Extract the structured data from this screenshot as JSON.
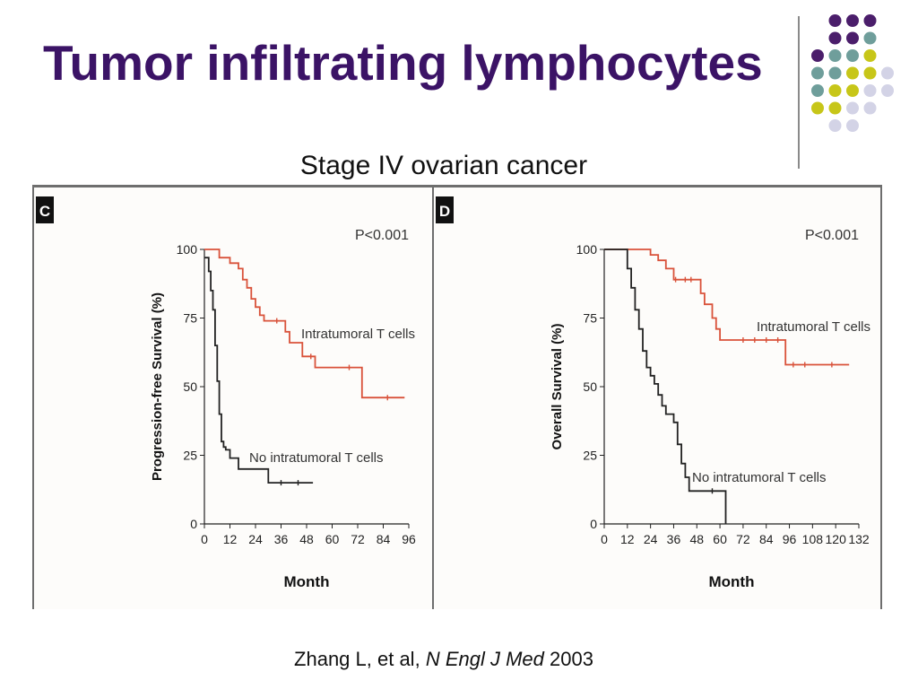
{
  "title": "Tumor infiltrating lymphocytes",
  "subtitle": "Stage IV ovarian cancer",
  "citation": {
    "authors": "Zhang L, et al,",
    "journal": "N Engl J Med",
    "year": "2003"
  },
  "colors": {
    "title": "#3b1366",
    "intratumoral": "#d9523a",
    "no_intratumoral": "#222222",
    "dot_purple": "#4b1e6b",
    "dot_teal": "#6f9e9b",
    "dot_lime": "#c7c619",
    "dot_lavender": "#d3d3e6"
  },
  "decorative_dot_colors": [
    [
      "purple",
      "purple",
      "purple"
    ],
    [
      "purple",
      "purple",
      "teal"
    ],
    [
      "purple",
      "teal",
      "teal",
      "lime"
    ],
    [
      "teal",
      "teal",
      "lime",
      "lime",
      "lavender"
    ],
    [
      "teal",
      "lime",
      "lime",
      "lavender",
      "lavender"
    ],
    [
      "lime",
      "lime",
      "lavender",
      "lavender"
    ],
    [
      "lavender",
      "lavender"
    ]
  ],
  "chart_data": [
    {
      "type": "line",
      "panel": "C",
      "pvalue": "P<0.001",
      "xlabel": "Month",
      "ylabel": "Progression-free Survival (%)",
      "xlim": [
        0,
        96
      ],
      "ylim": [
        0,
        100
      ],
      "xticks": [
        0,
        12,
        24,
        36,
        48,
        60,
        72,
        84,
        96
      ],
      "yticks": [
        0,
        25,
        50,
        75,
        100
      ],
      "series": [
        {
          "name": "Intratumoral T cells",
          "color": "intratumoral",
          "x": [
            0,
            7,
            7,
            12,
            12,
            16,
            16,
            18,
            18,
            20,
            20,
            22,
            22,
            24,
            24,
            26,
            26,
            28,
            28,
            38,
            38,
            40,
            40,
            46,
            46,
            52,
            52,
            74,
            74,
            94
          ],
          "y": [
            100,
            100,
            97,
            97,
            95,
            95,
            93,
            93,
            89,
            89,
            86,
            86,
            82,
            82,
            79,
            79,
            76,
            76,
            74,
            74,
            70,
            70,
            66,
            66,
            61,
            61,
            57,
            57,
            46,
            46
          ],
          "censored_x": [
            34,
            50,
            68,
            86
          ]
        },
        {
          "name": "No intratumoral T cells",
          "color": "no_intratumoral",
          "x": [
            0,
            2,
            2,
            3,
            3,
            4,
            4,
            5,
            5,
            6,
            6,
            7,
            7,
            8,
            8,
            9,
            9,
            10,
            10,
            12,
            12,
            16,
            16,
            30,
            30,
            51
          ],
          "y": [
            97,
            97,
            92,
            92,
            85,
            85,
            78,
            78,
            65,
            65,
            52,
            52,
            40,
            40,
            30,
            30,
            28,
            28,
            27,
            27,
            24,
            24,
            20,
            20,
            15,
            15
          ],
          "censored_x": [
            36,
            44
          ]
        }
      ]
    },
    {
      "type": "line",
      "panel": "D",
      "pvalue": "P<0.001",
      "xlabel": "Month",
      "ylabel": "Overall Survival (%)",
      "xlim": [
        0,
        132
      ],
      "ylim": [
        0,
        100
      ],
      "xticks": [
        0,
        12,
        24,
        36,
        48,
        60,
        72,
        84,
        96,
        108,
        120,
        132
      ],
      "yticks": [
        0,
        25,
        50,
        75,
        100
      ],
      "series": [
        {
          "name": "Intratumoral T cells",
          "color": "intratumoral",
          "x": [
            0,
            24,
            24,
            28,
            28,
            32,
            32,
            36,
            36,
            50,
            50,
            52,
            52,
            56,
            56,
            58,
            58,
            60,
            60,
            66,
            66,
            94,
            94,
            127
          ],
          "y": [
            100,
            100,
            98,
            98,
            96,
            96,
            93,
            93,
            89,
            89,
            84,
            84,
            80,
            80,
            75,
            75,
            71,
            71,
            67,
            67,
            67,
            67,
            58,
            58
          ],
          "censored_x": [
            37,
            42,
            45,
            72,
            78,
            84,
            90,
            98,
            104,
            118
          ]
        },
        {
          "name": "No intratumoral T cells",
          "color": "no_intratumoral",
          "x": [
            0,
            12,
            12,
            14,
            14,
            16,
            16,
            18,
            18,
            20,
            20,
            22,
            22,
            24,
            24,
            26,
            26,
            28,
            28,
            30,
            30,
            32,
            32,
            36,
            36,
            38,
            38,
            40,
            40,
            42,
            42,
            44,
            44,
            63,
            63
          ],
          "y": [
            100,
            100,
            93,
            93,
            86,
            86,
            78,
            78,
            71,
            71,
            63,
            63,
            57,
            57,
            54,
            54,
            51,
            51,
            47,
            47,
            43,
            43,
            40,
            40,
            37,
            37,
            29,
            29,
            22,
            22,
            17,
            17,
            12,
            12,
            0
          ],
          "censored_x": [
            56
          ]
        }
      ]
    }
  ]
}
